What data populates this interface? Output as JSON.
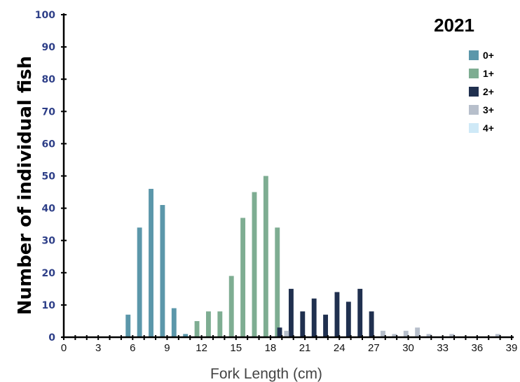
{
  "chart_data": {
    "type": "bar",
    "title": "2021",
    "xlabel": "Fork Length (cm)",
    "ylabel": "Number of individual fish",
    "xlim": [
      0,
      39
    ],
    "ylim": [
      0,
      100
    ],
    "xticks": [
      "0",
      "3",
      "6",
      "9",
      "12",
      "15",
      "18",
      "21",
      "24",
      "27",
      "30",
      "33",
      "36",
      "39"
    ],
    "yticks": [
      "0",
      "10",
      "20",
      "30",
      "40",
      "50",
      "60",
      "70",
      "80",
      "90",
      "100"
    ],
    "legend_position": "top-right",
    "grid": false,
    "series": [
      {
        "name": "0+",
        "color": "#5b97aa",
        "points": [
          [
            5.6,
            7
          ],
          [
            6.6,
            34
          ],
          [
            7.6,
            46
          ],
          [
            8.6,
            41
          ],
          [
            9.6,
            9
          ],
          [
            10.6,
            1
          ]
        ]
      },
      {
        "name": "1+",
        "color": "#7ead92",
        "points": [
          [
            11.6,
            5
          ],
          [
            12.6,
            8
          ],
          [
            13.6,
            8
          ],
          [
            14.6,
            19
          ],
          [
            15.6,
            37
          ],
          [
            16.6,
            45
          ],
          [
            17.6,
            50
          ],
          [
            18.6,
            34
          ]
        ]
      },
      {
        "name": "2+",
        "color": "#20304f",
        "points": [
          [
            18.8,
            3
          ],
          [
            19.8,
            15
          ],
          [
            20.8,
            8
          ],
          [
            21.8,
            12
          ],
          [
            22.8,
            7
          ],
          [
            23.8,
            14
          ],
          [
            24.8,
            11
          ],
          [
            25.8,
            15
          ],
          [
            26.8,
            8
          ]
        ]
      },
      {
        "name": "3+",
        "color": "#b7bfcb",
        "points": [
          [
            19.4,
            2
          ],
          [
            27.8,
            2
          ],
          [
            28.8,
            1
          ],
          [
            29.8,
            2
          ],
          [
            30.8,
            3
          ],
          [
            31.8,
            1
          ],
          [
            33.8,
            1
          ],
          [
            37.8,
            1
          ]
        ]
      },
      {
        "name": "4+",
        "color": "#cfe9f7",
        "points": []
      }
    ]
  }
}
